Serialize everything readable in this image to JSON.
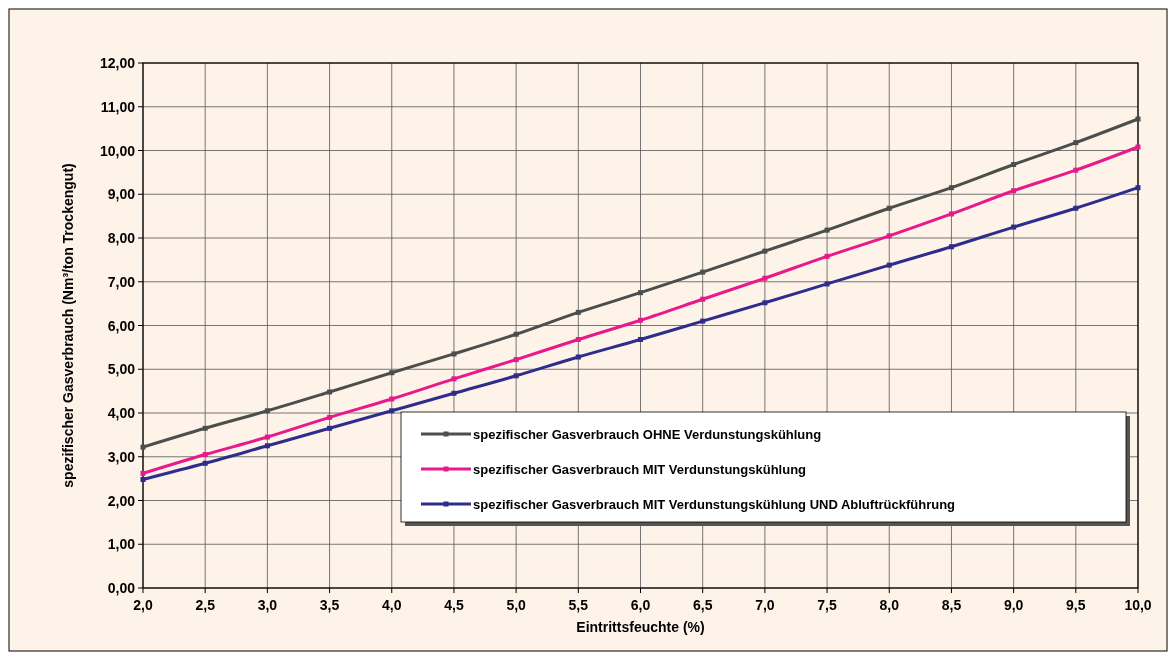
{
  "chart_data": {
    "type": "line",
    "xlabel": "Eintrittsfeuchte (%)",
    "ylabel": "spezifischer Gasverbrauch (Nm³/ton Trockengut)",
    "x": [
      2.0,
      2.5,
      3.0,
      3.5,
      4.0,
      4.5,
      5.0,
      5.5,
      6.0,
      6.5,
      7.0,
      7.5,
      8.0,
      8.5,
      9.0,
      9.5,
      10.0
    ],
    "series": [
      {
        "name": "spezifischer Gasverbrauch OHNE Verdunstungskühlung",
        "color": "#4a4f4c",
        "values": [
          3.22,
          3.65,
          4.05,
          4.48,
          4.92,
          5.35,
          5.8,
          6.3,
          6.75,
          7.22,
          7.7,
          8.18,
          8.68,
          9.15,
          9.68,
          10.18,
          10.72
        ]
      },
      {
        "name": "spezifischer Gasverbrauch MIT Verdunstungskühlung",
        "color": "#e8198a",
        "values": [
          2.62,
          3.05,
          3.45,
          3.9,
          4.32,
          4.78,
          5.22,
          5.68,
          6.12,
          6.6,
          7.08,
          7.58,
          8.05,
          8.55,
          9.08,
          9.55,
          10.08
        ]
      },
      {
        "name": "spezifischer Gasverbrauch MIT Verdunstungskühlung UND Abluftrückführung",
        "color": "#2e2c8c",
        "values": [
          2.48,
          2.85,
          3.25,
          3.65,
          4.05,
          4.45,
          4.85,
          5.28,
          5.68,
          6.1,
          6.52,
          6.95,
          7.38,
          7.8,
          8.25,
          8.68,
          9.15
        ]
      }
    ],
    "xlim": [
      2,
      10
    ],
    "xticks": [
      {
        "value": 2,
        "label": "2,0"
      },
      {
        "value": 2.5,
        "label": "2,5"
      },
      {
        "value": 3,
        "label": "3,0"
      },
      {
        "value": 3.5,
        "label": "3,5"
      },
      {
        "value": 4,
        "label": "4,0"
      },
      {
        "value": 4.5,
        "label": "4,5"
      },
      {
        "value": 5,
        "label": "5,0"
      },
      {
        "value": 5.5,
        "label": "5,5"
      },
      {
        "value": 6,
        "label": "6,0"
      },
      {
        "value": 6.5,
        "label": "6,5"
      },
      {
        "value": 7,
        "label": "7,0"
      },
      {
        "value": 7.5,
        "label": "7,5"
      },
      {
        "value": 8,
        "label": "8,0"
      },
      {
        "value": 8.5,
        "label": "8,5"
      },
      {
        "value": 9,
        "label": "9,0"
      },
      {
        "value": 9.5,
        "label": "9,5"
      },
      {
        "value": 10,
        "label": "10,0"
      }
    ],
    "ylim": [
      0,
      12
    ],
    "yticks": [
      {
        "value": 0,
        "label": "0,00"
      },
      {
        "value": 1,
        "label": "1,00"
      },
      {
        "value": 2,
        "label": "2,00"
      },
      {
        "value": 3,
        "label": "3,00"
      },
      {
        "value": 4,
        "label": "4,00"
      },
      {
        "value": 5,
        "label": "5,00"
      },
      {
        "value": 6,
        "label": "6,00"
      },
      {
        "value": 7,
        "label": "7,00"
      },
      {
        "value": 8,
        "label": "8,00"
      },
      {
        "value": 9,
        "label": "9,00"
      },
      {
        "value": 10,
        "label": "10,00"
      },
      {
        "value": 11,
        "label": "11,00"
      },
      {
        "value": 12,
        "label": "12,00"
      }
    ],
    "grid": true,
    "legend": "bottom right",
    "marker": "square",
    "line_style": "solid"
  }
}
